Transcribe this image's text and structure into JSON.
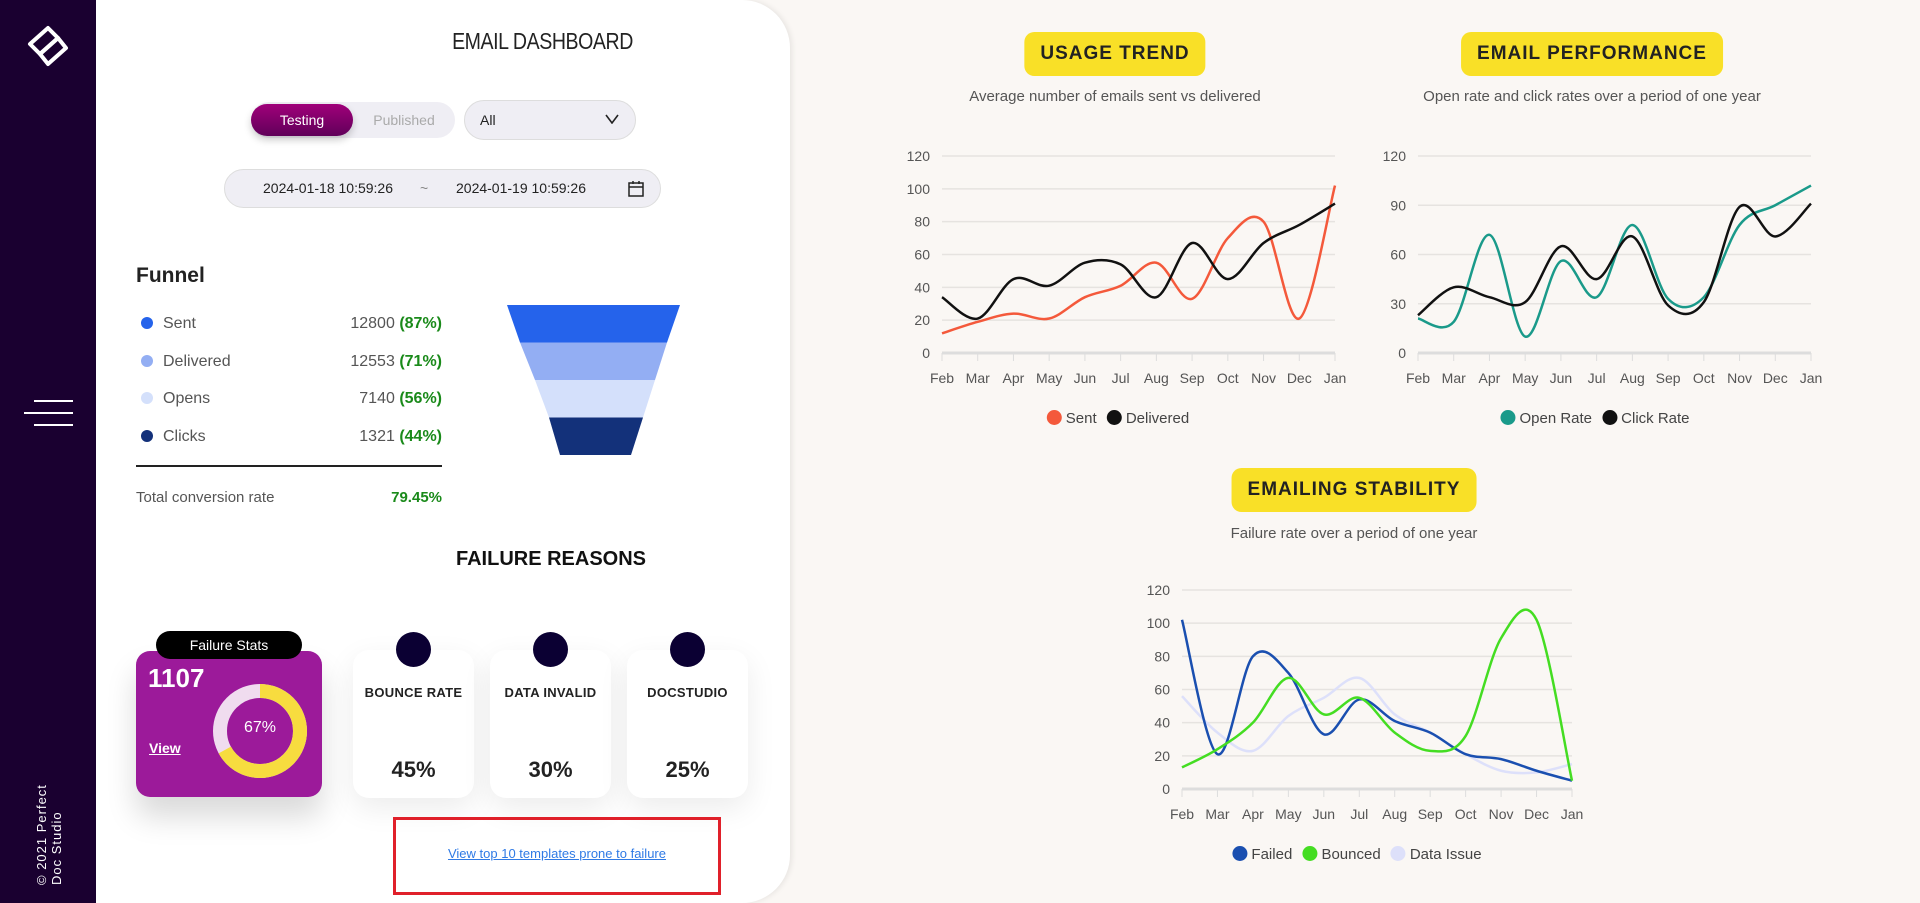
{
  "sidebar": {
    "copyright": "© 2021 Perfect Doc Studio",
    "logo": "docstudio-logo",
    "menu_icon": "hamburger-icon"
  },
  "header": {
    "title": "EMAIL DASHBOARD"
  },
  "filters": {
    "toggle": {
      "options": [
        "Testing",
        "Published"
      ],
      "selected": "Testing"
    },
    "select": {
      "value": "All"
    },
    "date_start": "2024-01-18 10:59:26",
    "date_sep": "~",
    "date_end": "2024-01-19 10:59:26"
  },
  "funnel": {
    "title": "Funnel",
    "rows": [
      {
        "label": "Sent",
        "value": "12800",
        "pct": "(87%)",
        "color": "#2563eb"
      },
      {
        "label": "Delivered",
        "value": "12553",
        "pct": "(71%)",
        "color": "#93aef3"
      },
      {
        "label": "Opens",
        "value": "7140",
        "pct": "(56%)",
        "color": "#d4e0fb"
      },
      {
        "label": "Clicks",
        "value": "1321",
        "pct": "(44%)",
        "color": "#13317a"
      }
    ],
    "total_label": "Total conversion rate",
    "total_value": "79.45%"
  },
  "failure": {
    "title": "FAILURE REASONS",
    "stats_label": "Failure Stats",
    "count": "1107",
    "view": "View",
    "donut_pct": "67%",
    "donut_fraction": 0.67,
    "cards": [
      {
        "label": "BOUNCE RATE",
        "value": "45%"
      },
      {
        "label": "DATA INVALID",
        "value": "30%"
      },
      {
        "label": "DOCSTUDIO",
        "value": "25%"
      }
    ],
    "link": "View top 10 templates prone to failure"
  },
  "chart_data": [
    {
      "type": "line",
      "title": "USAGE TREND",
      "subtitle": "Average number of emails sent vs delivered",
      "x": [
        "Feb",
        "Mar",
        "Apr",
        "May",
        "Jun",
        "Jul",
        "Aug",
        "Sep",
        "Oct",
        "Nov",
        "Dec",
        "Jan"
      ],
      "ylim": [
        0,
        120
      ],
      "yticks": [
        0,
        20,
        40,
        60,
        80,
        100,
        120
      ],
      "grid": true,
      "legend": "bottom",
      "series": [
        {
          "name": "Sent",
          "color": "#f4593b",
          "values": [
            12,
            19,
            24,
            21,
            34,
            41,
            55,
            33,
            70,
            80,
            21,
            102
          ]
        },
        {
          "name": "Delivered",
          "color": "#111111",
          "values": [
            34,
            21,
            45,
            41,
            55,
            54,
            34,
            67,
            45,
            67,
            78,
            91
          ]
        }
      ]
    },
    {
      "type": "line",
      "title": "EMAIL PERFORMANCE",
      "subtitle": "Open rate and click rates over a period of one year",
      "x": [
        "Feb",
        "Mar",
        "Apr",
        "May",
        "Jun",
        "Jul",
        "Aug",
        "Sep",
        "Oct",
        "Nov",
        "Dec",
        "Jan"
      ],
      "ylim": [
        0,
        120
      ],
      "yticks": [
        0,
        30,
        60,
        90,
        120
      ],
      "grid": true,
      "legend": "bottom",
      "series": [
        {
          "name": "Open Rate",
          "color": "#1a9a8a",
          "values": [
            21,
            19,
            72,
            10,
            56,
            34,
            78,
            33,
            34,
            78,
            90,
            102
          ]
        },
        {
          "name": "Click Rate",
          "color": "#111111",
          "values": [
            23,
            40,
            34,
            31,
            65,
            45,
            71,
            29,
            31,
            89,
            71,
            91
          ]
        }
      ]
    },
    {
      "type": "line",
      "title": "EMAILING STABILITY",
      "subtitle": "Failure rate over a period of one year",
      "x": [
        "Feb",
        "Mar",
        "Apr",
        "May",
        "Jun",
        "Jul",
        "Aug",
        "Sep",
        "Oct",
        "Nov",
        "Dec",
        "Jan"
      ],
      "ylim": [
        0,
        120
      ],
      "yticks": [
        0,
        20,
        40,
        60,
        80,
        100,
        120
      ],
      "grid": true,
      "legend": "bottom",
      "series": [
        {
          "name": "Data Issue",
          "color": "#dde0fa",
          "values": [
            56,
            34,
            23,
            44,
            55,
            67,
            45,
            34,
            21,
            11,
            10,
            15
          ]
        },
        {
          "name": "Failed",
          "color": "#1a4fb0",
          "values": [
            102,
            21,
            80,
            70,
            33,
            54,
            41,
            34,
            21,
            18,
            11,
            5
          ]
        },
        {
          "name": "Bounced",
          "color": "#44dd22",
          "values": [
            13,
            24,
            40,
            67,
            45,
            55,
            34,
            23,
            32,
            91,
            102,
            5
          ]
        }
      ],
      "legend_order": [
        "Failed",
        "Bounced",
        "Data Issue"
      ]
    }
  ]
}
